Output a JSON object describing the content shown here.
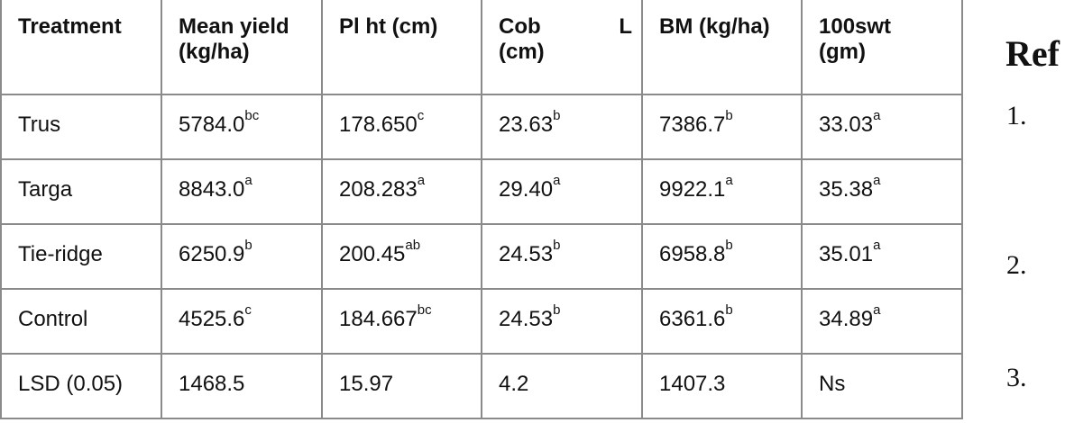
{
  "table": {
    "headers": [
      "Treatment",
      "Mean yield (kg/ha)",
      "Pl ht (cm)",
      "Cob L (cm)",
      "BM (kg/ha)",
      "100swt (gm)"
    ],
    "header_parts": {
      "cob_a": "Cob",
      "cob_b": "L",
      "cob_c": "(cm)",
      "yield_a": "Mean yield",
      "yield_b": "(kg/ha)",
      "swt_a": "100swt",
      "swt_b": "(gm)"
    },
    "rows": [
      {
        "treatment": "Trus",
        "cells": [
          {
            "v": "5784.0",
            "s": "bc"
          },
          {
            "v": "178.650",
            "s": "c"
          },
          {
            "v": "23.63",
            "s": "b"
          },
          {
            "v": "7386.7",
            "s": "b"
          },
          {
            "v": "33.03",
            "s": "a"
          }
        ]
      },
      {
        "treatment": "Targa",
        "cells": [
          {
            "v": "8843.0",
            "s": "a"
          },
          {
            "v": "208.283",
            "s": "a"
          },
          {
            "v": "29.40",
            "s": "a"
          },
          {
            "v": "9922.1",
            "s": "a"
          },
          {
            "v": "35.38",
            "s": "a"
          }
        ]
      },
      {
        "treatment": "Tie-ridge",
        "cells": [
          {
            "v": "6250.9",
            "s": "b"
          },
          {
            "v": "200.45",
            "s": "ab"
          },
          {
            "v": "24.53",
            "s": "b"
          },
          {
            "v": "6958.8",
            "s": "b"
          },
          {
            "v": "35.01",
            "s": "a"
          }
        ]
      },
      {
        "treatment": "Control",
        "cells": [
          {
            "v": "4525.6",
            "s": "c"
          },
          {
            "v": "184.667",
            "s": "bc"
          },
          {
            "v": "24.53",
            "s": "b"
          },
          {
            "v": "6361.6",
            "s": "b"
          },
          {
            "v": "34.89",
            "s": "a"
          }
        ]
      },
      {
        "treatment": "LSD (0.05)",
        "cells": [
          {
            "v": "1468.5",
            "s": ""
          },
          {
            "v": "15.97",
            "s": ""
          },
          {
            "v": "4.2",
            "s": ""
          },
          {
            "v": "1407.3",
            "s": ""
          },
          {
            "v": "Ns",
            "s": ""
          }
        ]
      }
    ]
  },
  "references": {
    "heading": "Ref",
    "numbers": [
      "1.",
      "2.",
      "3."
    ]
  }
}
